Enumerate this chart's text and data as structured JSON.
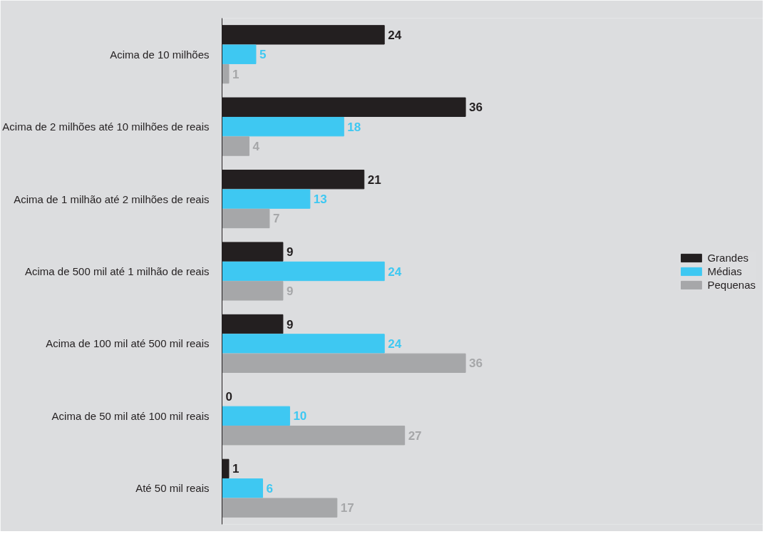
{
  "chart_data": {
    "type": "bar",
    "orientation": "horizontal",
    "categories": [
      "Acima de 10 milhões",
      "Acima de 2 milhões até 10 milhões de reais",
      "Acima de 1 milhão até 2 milhões de reais",
      "Acima de 500 mil até 1 milhão de reais",
      "Acima de 100 mil até 500 mil reais",
      "Acima de 50 mil até 100 mil reais",
      "Até 50 mil reais"
    ],
    "series": [
      {
        "name": "Grandes",
        "color": "#231f20",
        "values": [
          24,
          36,
          21,
          9,
          9,
          0,
          1
        ]
      },
      {
        "name": "Médias",
        "color": "#3ec8f2",
        "values": [
          5,
          18,
          13,
          24,
          24,
          10,
          6
        ]
      },
      {
        "name": "Pequenas",
        "color": "#a6a7a9",
        "values": [
          1,
          4,
          7,
          9,
          36,
          27,
          17
        ]
      }
    ],
    "xlim": [
      0,
      80
    ],
    "data_labels": true,
    "legend": "right",
    "grid": false,
    "tick_labels": "y"
  }
}
